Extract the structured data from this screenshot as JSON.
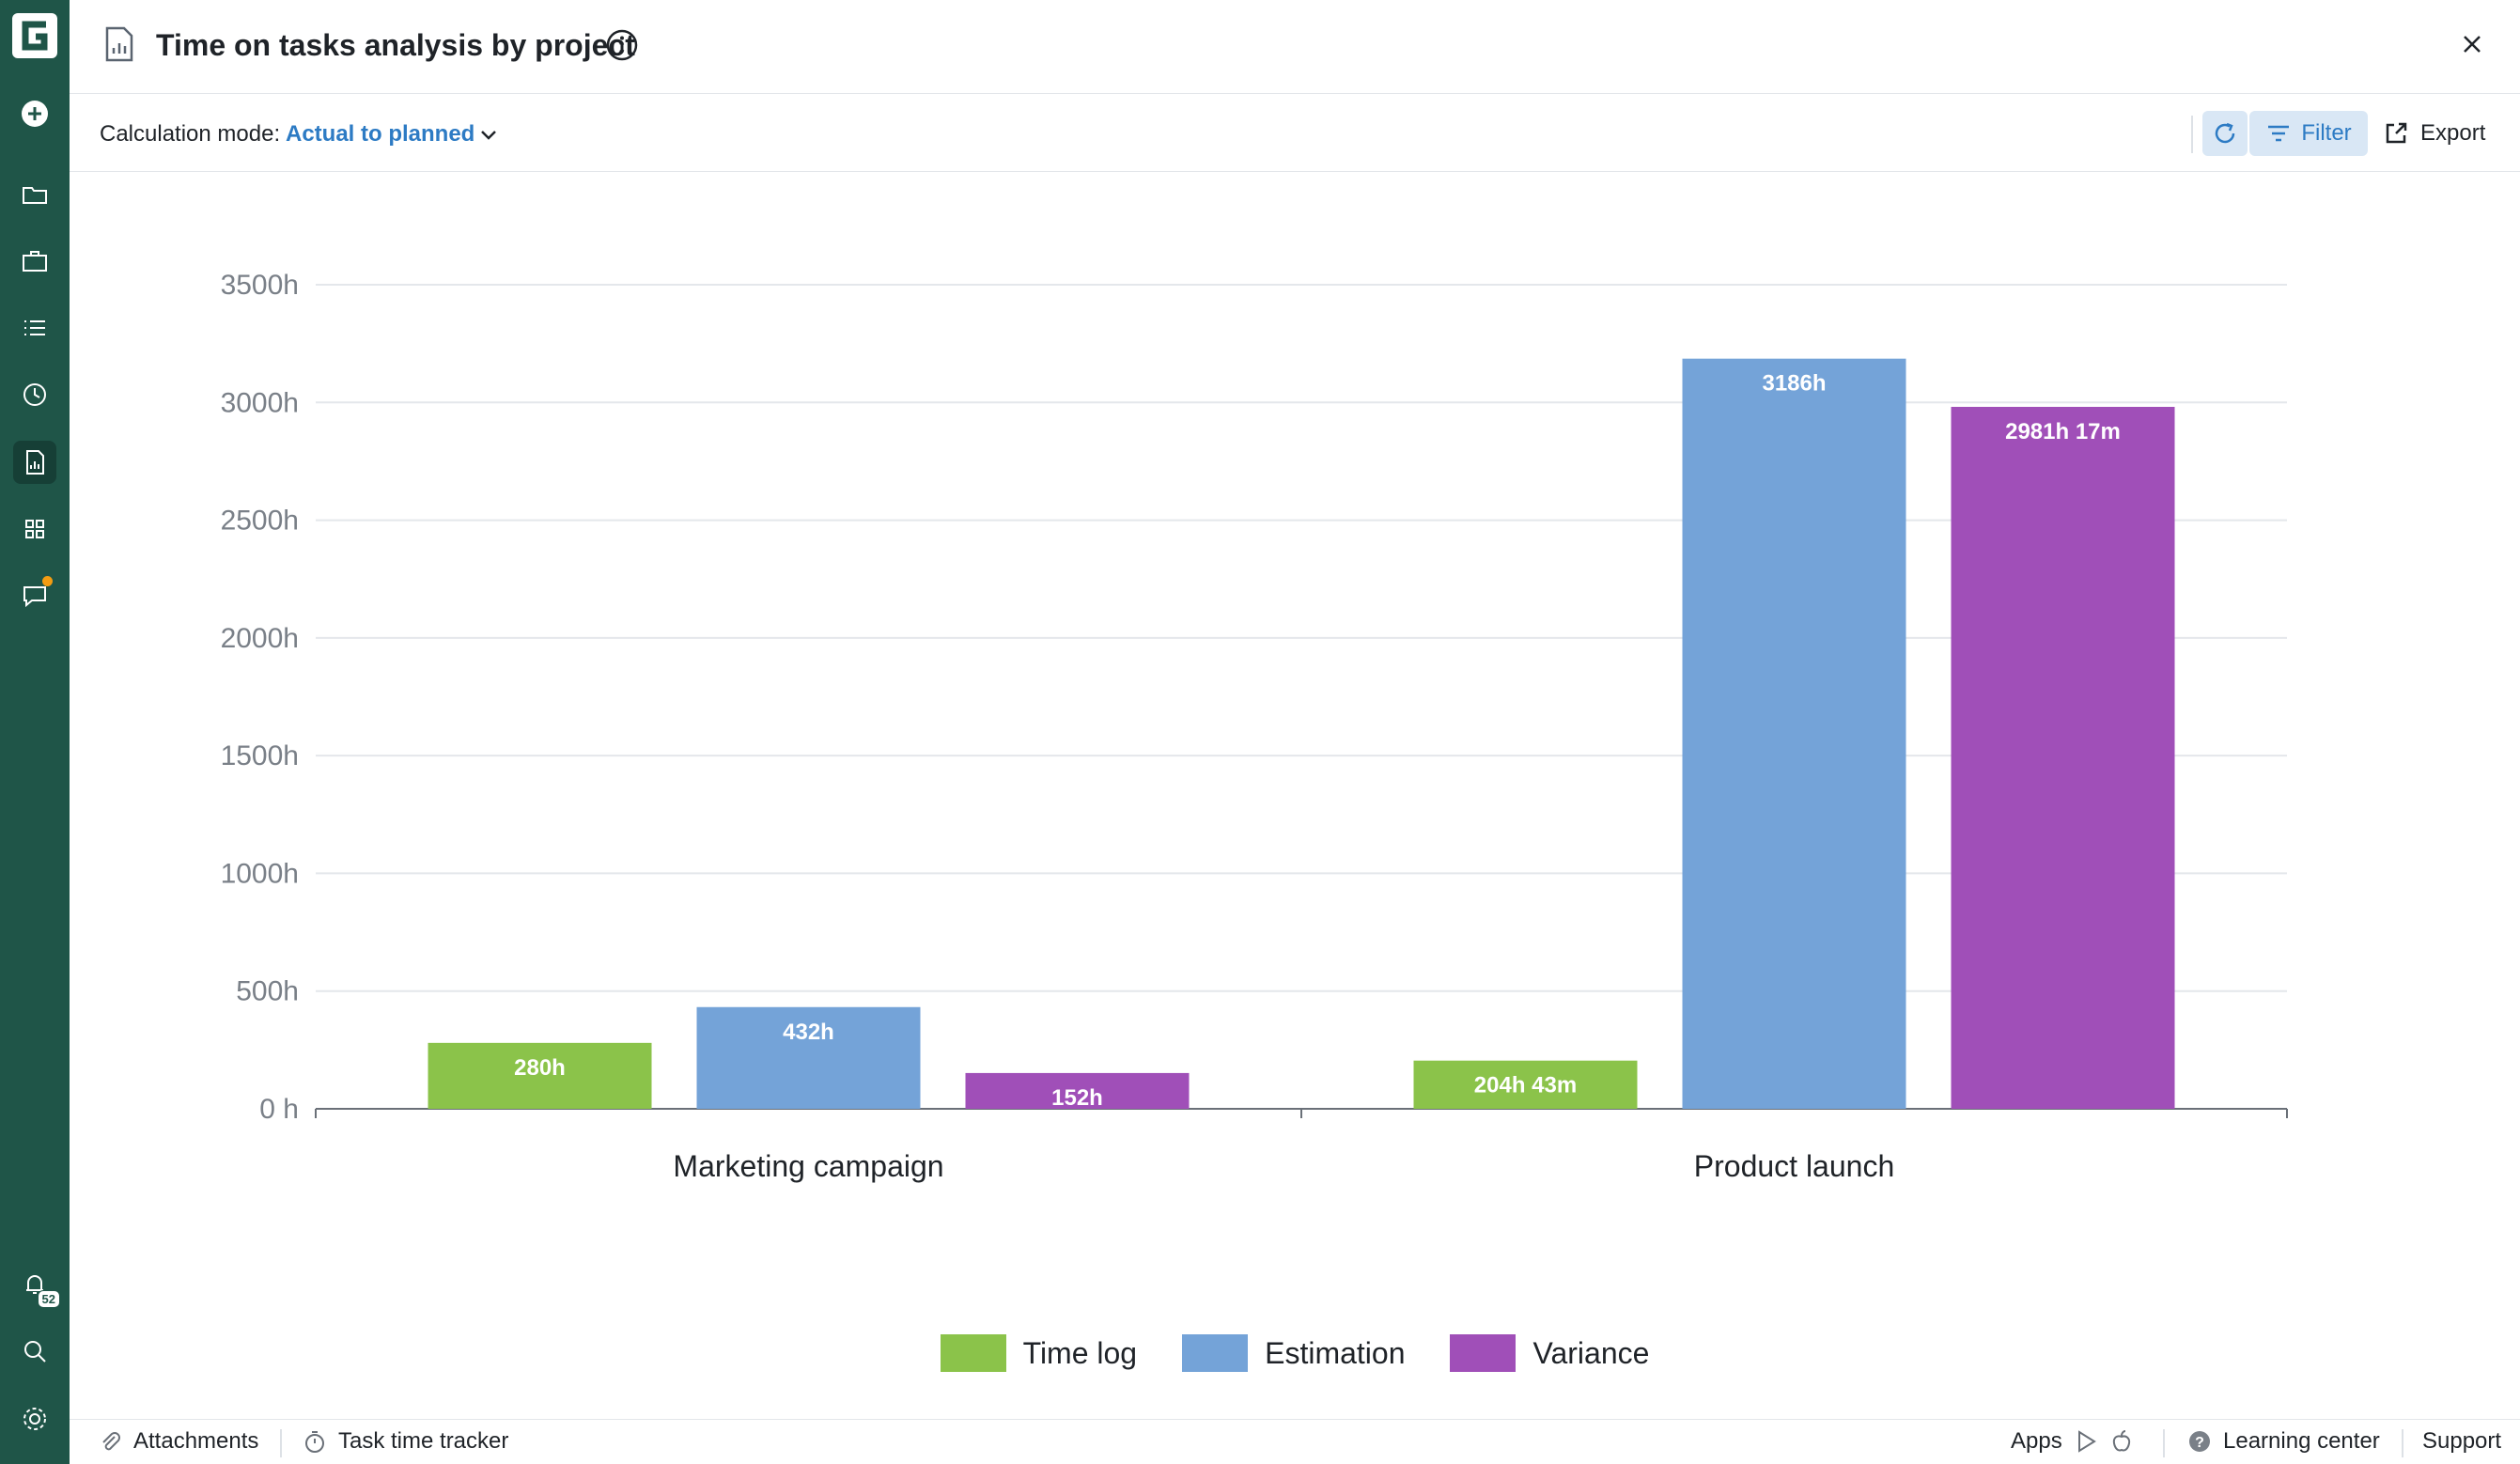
{
  "header": {
    "title": "Time on tasks analysis by project"
  },
  "toolbar": {
    "calc_label": "Calculation mode:",
    "calc_value": "Actual to planned",
    "filter_label": "Filter",
    "export_label": "Export"
  },
  "sidebar": {
    "items": [
      "logo-icon",
      "add-icon",
      "folder-icon",
      "briefcase-icon",
      "list-icon",
      "clock-icon",
      "report-icon",
      "apps-grid-icon",
      "chat-icon",
      "bell-icon",
      "search-icon",
      "gear-icon"
    ],
    "notification_count": "52"
  },
  "chart_data": {
    "type": "bar",
    "categories": [
      "Marketing campaign",
      "Product launch"
    ],
    "series": [
      {
        "name": "Time log",
        "color": "#8bc34a",
        "values": [
          280,
          204.72
        ],
        "labels": [
          "280h",
          "204h 43m"
        ]
      },
      {
        "name": "Estimation",
        "color": "#74a3d8",
        "values": [
          432,
          3186
        ],
        "labels": [
          "432h",
          "3186h"
        ]
      },
      {
        "name": "Variance",
        "color": "#a04fb8",
        "values": [
          152,
          2981.28
        ],
        "labels": [
          "152h",
          "2981h 17m"
        ]
      }
    ],
    "yticks": [
      "0 h",
      "500h",
      "1000h",
      "1500h",
      "2000h",
      "2500h",
      "3000h",
      "3500h"
    ],
    "ylim": [
      0,
      3500
    ],
    "grid": true,
    "legend": "bottom"
  },
  "footer": {
    "attachments": "Attachments",
    "time_tracker": "Task time tracker",
    "apps": "Apps",
    "learning": "Learning center",
    "support": "Support"
  }
}
